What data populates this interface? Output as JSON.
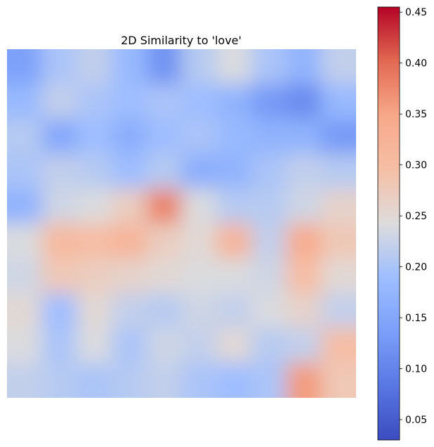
{
  "chart_data": {
    "type": "heatmap",
    "title": "2D Similarity to 'love'",
    "xlabel": "",
    "ylabel": "",
    "axes_visible": false,
    "colormap": "coolwarm",
    "colorbar": {
      "range": [
        0.03,
        0.455
      ],
      "ticks": [
        0.05,
        0.1,
        0.15,
        0.2,
        0.25,
        0.3,
        0.35,
        0.4,
        0.45
      ],
      "tick_labels": [
        "0.05",
        "0.10",
        "0.15",
        "0.20",
        "0.25",
        "0.30",
        "0.35",
        "0.40",
        "0.45"
      ]
    },
    "grid": {
      "rows": 10,
      "cols": 10
    },
    "values": [
      [
        0.14,
        0.2,
        0.22,
        0.18,
        0.12,
        0.21,
        0.24,
        0.2,
        0.17,
        0.22
      ],
      [
        0.18,
        0.22,
        0.2,
        0.19,
        0.2,
        0.19,
        0.17,
        0.13,
        0.11,
        0.18
      ],
      [
        0.21,
        0.15,
        0.19,
        0.16,
        0.19,
        0.2,
        0.18,
        0.17,
        0.17,
        0.13
      ],
      [
        0.2,
        0.22,
        0.21,
        0.19,
        0.21,
        0.16,
        0.17,
        0.2,
        0.22,
        0.21
      ],
      [
        0.17,
        0.23,
        0.24,
        0.27,
        0.38,
        0.24,
        0.21,
        0.21,
        0.23,
        0.26
      ],
      [
        0.24,
        0.31,
        0.3,
        0.32,
        0.27,
        0.25,
        0.32,
        0.22,
        0.34,
        0.28
      ],
      [
        0.23,
        0.28,
        0.27,
        0.26,
        0.25,
        0.24,
        0.24,
        0.23,
        0.3,
        0.25
      ],
      [
        0.25,
        0.19,
        0.25,
        0.22,
        0.21,
        0.23,
        0.22,
        0.24,
        0.26,
        0.22
      ],
      [
        0.24,
        0.2,
        0.24,
        0.2,
        0.23,
        0.22,
        0.25,
        0.21,
        0.22,
        0.3
      ],
      [
        0.22,
        0.21,
        0.2,
        0.21,
        0.22,
        0.2,
        0.19,
        0.2,
        0.36,
        0.28
      ]
    ]
  }
}
